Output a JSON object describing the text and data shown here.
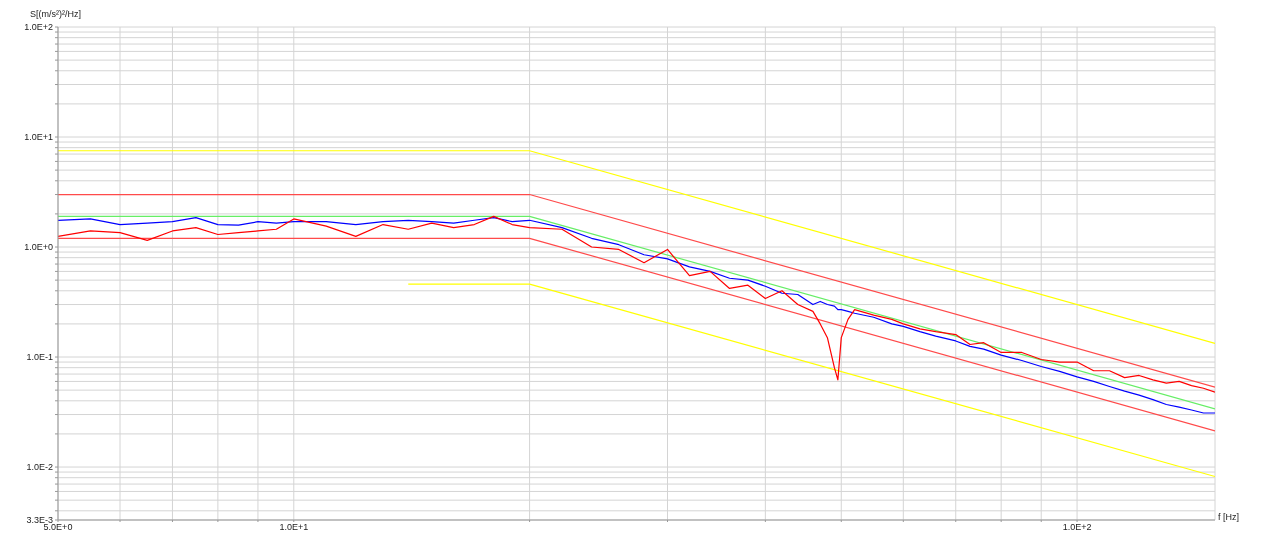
{
  "chart_data": {
    "type": "line",
    "ylabel": "S[(m/s²)²/Hz]",
    "xlabel": "f [Hz]",
    "log": "xy",
    "grid": true,
    "legend": false,
    "marker": "none",
    "line_style": "solid",
    "x": [
      5,
      5.5,
      6,
      6.5,
      7,
      7.5,
      8,
      8.5,
      9,
      9.5,
      10,
      11,
      12,
      13,
      14,
      15,
      16,
      17,
      18,
      19,
      20,
      22,
      24,
      26,
      28,
      30,
      32,
      34,
      36,
      38,
      40,
      42,
      44,
      46,
      47,
      48,
      49,
      49.5,
      50,
      51,
      52,
      55,
      58,
      60,
      63,
      66,
      70,
      73,
      76,
      80,
      85,
      90,
      95,
      100,
      105,
      110,
      115,
      120,
      125,
      130,
      135,
      140,
      145,
      150
    ],
    "xlim": [
      5,
      150
    ],
    "xticks": [
      {
        "value": 5,
        "label": "5.0E+0"
      },
      {
        "value": 6,
        "label": null
      },
      {
        "value": 7,
        "label": null
      },
      {
        "value": 8,
        "label": null
      },
      {
        "value": 9,
        "label": null
      },
      {
        "value": 10,
        "label": "1.0E+1"
      },
      {
        "value": 20,
        "label": null
      },
      {
        "value": 30,
        "label": null
      },
      {
        "value": 40,
        "label": null
      },
      {
        "value": 50,
        "label": null
      },
      {
        "value": 60,
        "label": null
      },
      {
        "value": 70,
        "label": null
      },
      {
        "value": 80,
        "label": null
      },
      {
        "value": 90,
        "label": null
      },
      {
        "value": 100,
        "label": "1.0E+2"
      }
    ],
    "ylim": [
      0.0033,
      100
    ],
    "yticks": [
      {
        "value": 0.0033,
        "label": "3.3E-3"
      },
      {
        "value": 0.004,
        "label": null
      },
      {
        "value": 0.005,
        "label": null
      },
      {
        "value": 0.006,
        "label": null
      },
      {
        "value": 0.007,
        "label": null
      },
      {
        "value": 0.008,
        "label": null
      },
      {
        "value": 0.009,
        "label": null
      },
      {
        "value": 0.01,
        "label": "1.0E-2"
      },
      {
        "value": 0.02,
        "label": null
      },
      {
        "value": 0.03,
        "label": null
      },
      {
        "value": 0.04,
        "label": null
      },
      {
        "value": 0.05,
        "label": null
      },
      {
        "value": 0.06,
        "label": null
      },
      {
        "value": 0.07,
        "label": null
      },
      {
        "value": 0.08,
        "label": null
      },
      {
        "value": 0.09,
        "label": null
      },
      {
        "value": 0.1,
        "label": "1.0E-1"
      },
      {
        "value": 0.2,
        "label": null
      },
      {
        "value": 0.3,
        "label": null
      },
      {
        "value": 0.4,
        "label": null
      },
      {
        "value": 0.5,
        "label": null
      },
      {
        "value": 0.6,
        "label": null
      },
      {
        "value": 0.7,
        "label": null
      },
      {
        "value": 0.8,
        "label": null
      },
      {
        "value": 0.9,
        "label": null
      },
      {
        "value": 1,
        "label": "1.0E+0"
      },
      {
        "value": 2,
        "label": null
      },
      {
        "value": 3,
        "label": null
      },
      {
        "value": 4,
        "label": null
      },
      {
        "value": 5,
        "label": null
      },
      {
        "value": 6,
        "label": null
      },
      {
        "value": 7,
        "label": null
      },
      {
        "value": 8,
        "label": null
      },
      {
        "value": 9,
        "label": null
      },
      {
        "value": 10,
        "label": "1.0E+1"
      },
      {
        "value": 20,
        "label": null
      },
      {
        "value": 30,
        "label": null
      },
      {
        "value": 40,
        "label": null
      },
      {
        "value": 50,
        "label": null
      },
      {
        "value": 60,
        "label": null
      },
      {
        "value": 70,
        "label": null
      },
      {
        "value": 80,
        "label": null
      },
      {
        "value": 90,
        "label": null
      },
      {
        "value": 100,
        "label": "1.0E+2"
      }
    ],
    "series": [
      {
        "color": "#ffff00",
        "x": [
          5,
          20,
          150
        ],
        "values": [
          7.5,
          7.5,
          0.133
        ]
      },
      {
        "color": "#ff4a4a",
        "x": [
          5,
          20,
          150
        ],
        "values": [
          3,
          3,
          0.0533
        ]
      },
      {
        "color": "#66ee66",
        "x": [
          5,
          20,
          150
        ],
        "values": [
          1.9,
          1.9,
          0.0338
        ]
      },
      {
        "color": "#ff4a4a",
        "x": [
          5,
          20,
          150
        ],
        "values": [
          1.2,
          1.2,
          0.0213
        ]
      },
      {
        "color": "#ffff00",
        "x": [
          14,
          20,
          150
        ],
        "values": [
          0.46,
          0.46,
          0.0082
        ]
      },
      {
        "color": "#0000ff",
        "values": [
          1.75,
          1.8,
          1.6,
          1.65,
          1.7,
          1.85,
          1.6,
          1.58,
          1.7,
          1.65,
          1.7,
          1.7,
          1.6,
          1.7,
          1.75,
          1.7,
          1.65,
          1.75,
          1.85,
          1.7,
          1.75,
          1.5,
          1.2,
          1.05,
          0.85,
          0.78,
          0.66,
          0.6,
          0.52,
          0.5,
          0.44,
          0.38,
          0.37,
          0.3,
          0.32,
          0.3,
          0.29,
          0.27,
          0.27,
          0.26,
          0.25,
          0.23,
          0.2,
          0.19,
          0.17,
          0.155,
          0.14,
          0.125,
          0.118,
          0.104,
          0.093,
          0.082,
          0.074,
          0.066,
          0.06,
          0.054,
          0.049,
          0.045,
          0.041,
          0.037,
          0.035,
          0.033,
          0.031,
          0.031
        ]
      },
      {
        "color": "#ff0000",
        "values": [
          1.25,
          1.4,
          1.35,
          1.15,
          1.4,
          1.5,
          1.3,
          1.35,
          1.4,
          1.45,
          1.8,
          1.55,
          1.25,
          1.6,
          1.45,
          1.65,
          1.5,
          1.6,
          1.9,
          1.6,
          1.5,
          1.45,
          1.0,
          0.95,
          0.72,
          0.95,
          0.55,
          0.6,
          0.42,
          0.45,
          0.34,
          0.4,
          0.3,
          0.26,
          0.2,
          0.15,
          0.08,
          0.062,
          0.15,
          0.22,
          0.27,
          0.24,
          0.22,
          0.2,
          0.18,
          0.17,
          0.16,
          0.13,
          0.135,
          0.11,
          0.11,
          0.095,
          0.09,
          0.09,
          0.075,
          0.075,
          0.065,
          0.068,
          0.062,
          0.058,
          0.06,
          0.055,
          0.052,
          0.048
        ]
      }
    ]
  }
}
